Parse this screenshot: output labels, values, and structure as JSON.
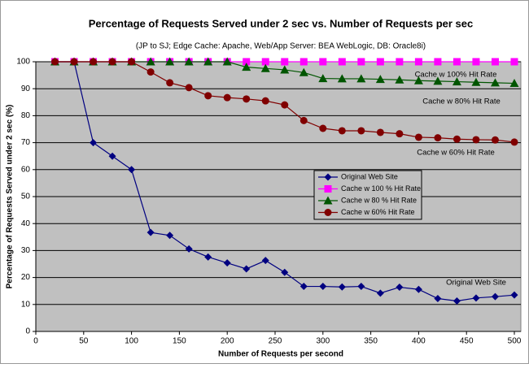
{
  "chart_data": {
    "type": "line",
    "title": "Percentage of Requests Served under 2 sec vs. Number of Requests per sec",
    "subtitle": "(JP to SJ; Edge Cache: Apache, Web/App Server: BEA WebLogic, DB: Oracle8i)",
    "xlabel": "Number of Requests per second",
    "ylabel": "Percentage of Requests Served under 2 sec (%)",
    "x": [
      20,
      40,
      60,
      80,
      100,
      120,
      140,
      160,
      180,
      200,
      220,
      240,
      260,
      280,
      300,
      320,
      340,
      360,
      380,
      400,
      420,
      440,
      460,
      480,
      500
    ],
    "series": [
      {
        "name": "Original Web Site",
        "color": "#000080",
        "marker": "diamond",
        "values": [
          100,
          100,
          70,
          65,
          60,
          36.7,
          35.6,
          30.6,
          27.6,
          25.4,
          23.2,
          26.3,
          21.9,
          16.7,
          16.7,
          16.5,
          16.7,
          14.2,
          16.4,
          15.6,
          12.2,
          11.3,
          12.4,
          12.9,
          13.5
        ]
      },
      {
        "name": "Cache w 100 % Hit Rate",
        "color": "#ff00ff",
        "marker": "square",
        "values": [
          100,
          100,
          100,
          100,
          100,
          100,
          100,
          100,
          100,
          100,
          100,
          100,
          100,
          100,
          100,
          100,
          100,
          100,
          100,
          100,
          100,
          100,
          100,
          100,
          100
        ]
      },
      {
        "name": "Cache w 80 % Hit Rate",
        "color": "#005500",
        "marker": "triangle",
        "values": [
          100,
          100,
          100,
          100,
          100,
          100,
          100,
          100,
          100,
          100,
          98,
          97.5,
          97,
          96,
          93.8,
          93.7,
          93.7,
          93.5,
          93.3,
          93,
          92.8,
          92.6,
          92.4,
          92.2,
          92
        ]
      },
      {
        "name": "Cache w 60% Hit Rate",
        "color": "#800000",
        "marker": "circle",
        "values": [
          100,
          100,
          100,
          100,
          100,
          96.2,
          92.2,
          90.4,
          87.4,
          86.7,
          86.2,
          85.5,
          84,
          78.2,
          75.3,
          74.4,
          74.4,
          73.8,
          73.3,
          72,
          71.8,
          71.3,
          71.1,
          71,
          70.2
        ]
      }
    ],
    "annotations": [
      "Cache w 100% Hit Rate",
      "Cache w 80% Hit Rate",
      "Cache w 60% Hit Rate",
      "Original Web Site"
    ],
    "xlim": [
      0,
      500
    ],
    "xticks": [
      0,
      50,
      100,
      150,
      200,
      250,
      300,
      350,
      400,
      450,
      500
    ],
    "ylim": [
      0,
      100
    ],
    "yticks": [
      0,
      10,
      20,
      30,
      40,
      50,
      60,
      70,
      80,
      90,
      100
    ],
    "grid": "y",
    "legend": "center"
  }
}
